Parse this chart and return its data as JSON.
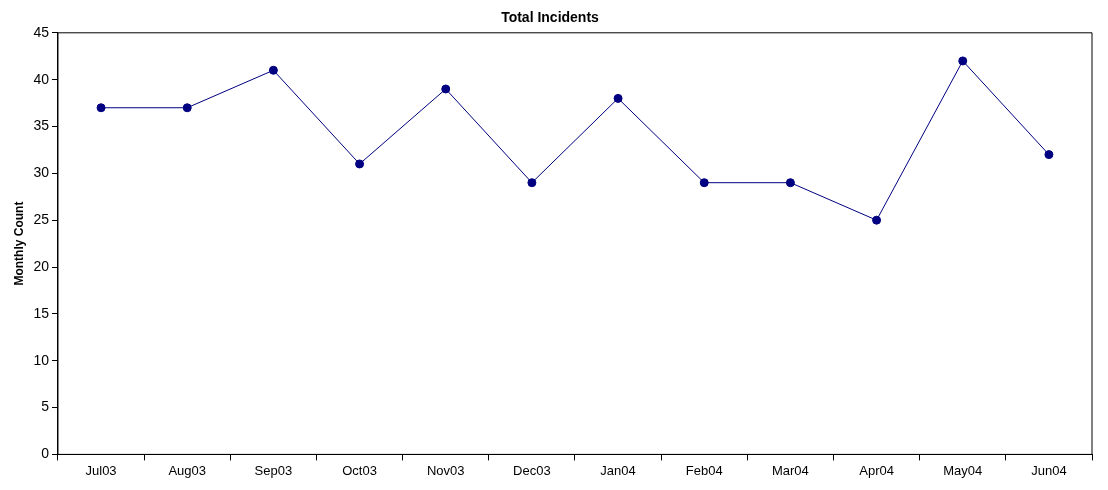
{
  "chart_data": {
    "type": "line",
    "title": "Total Incidents",
    "ylabel": "Monthly Count",
    "categories": [
      "Jul03",
      "Aug03",
      "Sep03",
      "Oct03",
      "Nov03",
      "Dec03",
      "Jan04",
      "Feb04",
      "Mar04",
      "Apr04",
      "May04",
      "Jun04"
    ],
    "series": [
      {
        "color": "#000080",
        "values": [
          37,
          37,
          41,
          31,
          39,
          29,
          38,
          29,
          29,
          25,
          42,
          32
        ]
      }
    ],
    "ylim": [
      0,
      45
    ],
    "yticks": [
      0,
      5,
      10,
      15,
      20,
      25,
      30,
      35,
      40,
      45
    ],
    "marker": "circle",
    "line_style": "solid",
    "legend": false
  }
}
